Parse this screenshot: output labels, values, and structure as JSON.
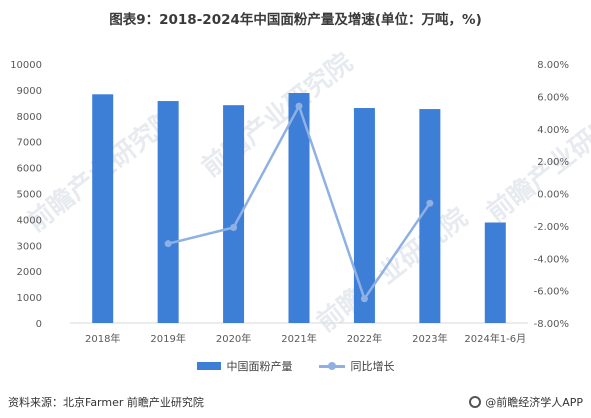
{
  "title": "图表9：2018-2024年中国面粉产量及增速(单位：万吨，%)",
  "watermarks": [
    "前瞻产业研究院",
    "前瞻产业研究院",
    "前瞻产业研究院",
    "前瞻产业研究院"
  ],
  "footer": {
    "source": "资料来源：北京Farmer 前瞻产业研究院",
    "brand": "@前瞻经济学人APP"
  },
  "colors": {
    "bar": "#3d7ed6",
    "line": "#8fb0e3"
  },
  "chart_data": {
    "type": "bar+line",
    "categories": [
      "2018年",
      "2019年",
      "2020年",
      "2021年",
      "2022年",
      "2023年",
      "2024年1-6月"
    ],
    "series": [
      {
        "name": "中国面粉产量",
        "type": "bar",
        "axis": "left",
        "values": [
          8830,
          8570,
          8410,
          8880,
          8300,
          8260,
          3880
        ]
      },
      {
        "name": "同比增长",
        "type": "line",
        "axis": "right",
        "values": [
          null,
          -3.1,
          -2.1,
          5.4,
          -6.5,
          -0.6,
          null
        ]
      }
    ],
    "y_left": {
      "min": 0,
      "max": 10000,
      "step": 1000,
      "tick_labels": [
        "0",
        "1000",
        "2000",
        "3000",
        "4000",
        "5000",
        "6000",
        "7000",
        "8000",
        "9000",
        "10000"
      ]
    },
    "y_right": {
      "min": -8,
      "max": 8,
      "step": 2,
      "tick_labels": [
        "-8.00%",
        "-6.00%",
        "-4.00%",
        "-2.00%",
        "0.00%",
        "2.00%",
        "4.00%",
        "6.00%",
        "8.00%"
      ]
    },
    "grid": false,
    "legend": "bottom"
  }
}
